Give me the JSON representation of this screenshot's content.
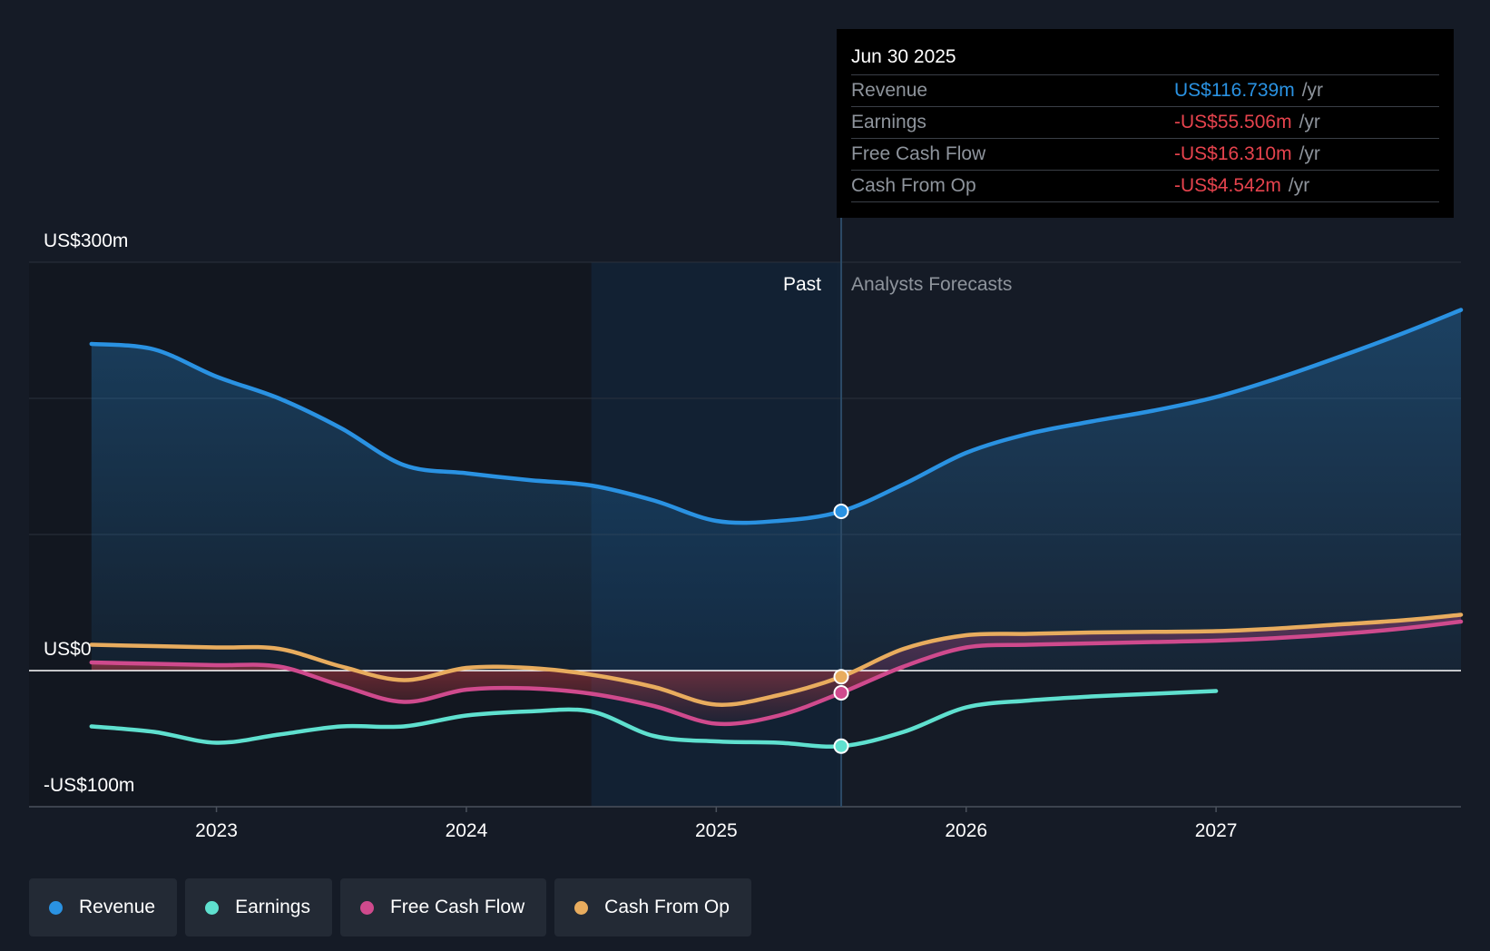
{
  "chart_data": {
    "type": "line",
    "title": "",
    "y_unit_labels": {
      "top": "US$300m",
      "zero": "US$0",
      "bottom": "-US$100m"
    },
    "ylim": [
      -100,
      300
    ],
    "xlim": [
      2022.25,
      2027.98
    ],
    "x_ticks": [
      2023,
      2024,
      2025,
      2026,
      2027
    ],
    "x_tick_labels": [
      "2023",
      "2024",
      "2025",
      "2026",
      "2027"
    ],
    "divider_x": 2025.5,
    "highlight_start_x": 2024.5,
    "past_label": "Past",
    "forecast_label": "Analysts Forecasts",
    "series": [
      {
        "name": "Revenue",
        "color": "#2a92e2",
        "points": [
          [
            2022.5,
            240
          ],
          [
            2022.75,
            236
          ],
          [
            2023.0,
            216
          ],
          [
            2023.25,
            200
          ],
          [
            2023.5,
            178
          ],
          [
            2023.75,
            151
          ],
          [
            2024.0,
            145
          ],
          [
            2024.25,
            140
          ],
          [
            2024.5,
            136
          ],
          [
            2024.75,
            125
          ],
          [
            2025.0,
            110
          ],
          [
            2025.25,
            110
          ],
          [
            2025.5,
            117
          ]
        ],
        "forecast": [
          [
            2025.5,
            117
          ],
          [
            2025.75,
            137
          ],
          [
            2026.0,
            160
          ],
          [
            2026.25,
            174
          ],
          [
            2026.5,
            183
          ],
          [
            2026.75,
            191
          ],
          [
            2027.0,
            201
          ],
          [
            2027.25,
            215
          ],
          [
            2027.5,
            231
          ],
          [
            2027.75,
            248
          ],
          [
            2027.98,
            265
          ]
        ]
      },
      {
        "name": "Earnings",
        "color": "#5fe0cf",
        "points": [
          [
            2022.5,
            -41
          ],
          [
            2022.75,
            -45
          ],
          [
            2023.0,
            -53
          ],
          [
            2023.25,
            -47
          ],
          [
            2023.5,
            -41
          ],
          [
            2023.75,
            -41
          ],
          [
            2024.0,
            -33
          ],
          [
            2024.25,
            -30
          ],
          [
            2024.5,
            -30
          ],
          [
            2024.75,
            -48
          ],
          [
            2025.0,
            -52
          ],
          [
            2025.25,
            -53
          ],
          [
            2025.5,
            -55.5
          ]
        ],
        "forecast": [
          [
            2025.5,
            -55.5
          ],
          [
            2025.75,
            -45
          ],
          [
            2026.0,
            -27
          ],
          [
            2026.25,
            -22
          ],
          [
            2026.5,
            -19
          ],
          [
            2026.75,
            -17
          ],
          [
            2027.0,
            -15
          ]
        ]
      },
      {
        "name": "Free Cash Flow",
        "color": "#cf4a8d",
        "points": [
          [
            2022.5,
            6
          ],
          [
            2022.75,
            5
          ],
          [
            2023.0,
            4
          ],
          [
            2023.25,
            3
          ],
          [
            2023.5,
            -11
          ],
          [
            2023.75,
            -23
          ],
          [
            2024.0,
            -14
          ],
          [
            2024.25,
            -13
          ],
          [
            2024.5,
            -17
          ],
          [
            2024.75,
            -26
          ],
          [
            2025.0,
            -39
          ],
          [
            2025.25,
            -33
          ],
          [
            2025.5,
            -16.3
          ]
        ],
        "forecast": [
          [
            2025.5,
            -16.3
          ],
          [
            2025.75,
            3
          ],
          [
            2026.0,
            17
          ],
          [
            2026.25,
            19
          ],
          [
            2026.5,
            20
          ],
          [
            2026.75,
            21
          ],
          [
            2027.0,
            22
          ],
          [
            2027.25,
            24
          ],
          [
            2027.5,
            27
          ],
          [
            2027.75,
            31
          ],
          [
            2027.98,
            36
          ]
        ]
      },
      {
        "name": "Cash From Op",
        "color": "#e8ac5e",
        "points": [
          [
            2022.5,
            19
          ],
          [
            2022.75,
            18
          ],
          [
            2023.0,
            17
          ],
          [
            2023.25,
            16
          ],
          [
            2023.5,
            3
          ],
          [
            2023.75,
            -7
          ],
          [
            2024.0,
            2
          ],
          [
            2024.25,
            2
          ],
          [
            2024.5,
            -3
          ],
          [
            2024.75,
            -12
          ],
          [
            2025.0,
            -25
          ],
          [
            2025.25,
            -18
          ],
          [
            2025.5,
            -4.5
          ]
        ],
        "forecast": [
          [
            2025.5,
            -4.5
          ],
          [
            2025.75,
            16
          ],
          [
            2026.0,
            26
          ],
          [
            2026.25,
            27
          ],
          [
            2026.5,
            28
          ],
          [
            2026.75,
            28.5
          ],
          [
            2027.0,
            29
          ],
          [
            2027.25,
            31
          ],
          [
            2027.5,
            34
          ],
          [
            2027.75,
            37
          ],
          [
            2027.98,
            41
          ]
        ]
      }
    ]
  },
  "tooltip": {
    "date": "Jun 30 2025",
    "unit": "/yr",
    "rows": [
      {
        "label": "Revenue",
        "value": "US$116.739m",
        "color": "#2a92e2"
      },
      {
        "label": "Earnings",
        "value": "-US$55.506m",
        "color": "#e5434d"
      },
      {
        "label": "Free Cash Flow",
        "value": "-US$16.310m",
        "color": "#e5434d"
      },
      {
        "label": "Cash From Op",
        "value": "-US$4.542m",
        "color": "#e5434d"
      }
    ]
  },
  "legend": [
    {
      "label": "Revenue",
      "color": "#2a92e2"
    },
    {
      "label": "Earnings",
      "color": "#5fe0cf"
    },
    {
      "label": "Free Cash Flow",
      "color": "#cf4a8d"
    },
    {
      "label": "Cash From Op",
      "color": "#e8ac5e"
    }
  ]
}
